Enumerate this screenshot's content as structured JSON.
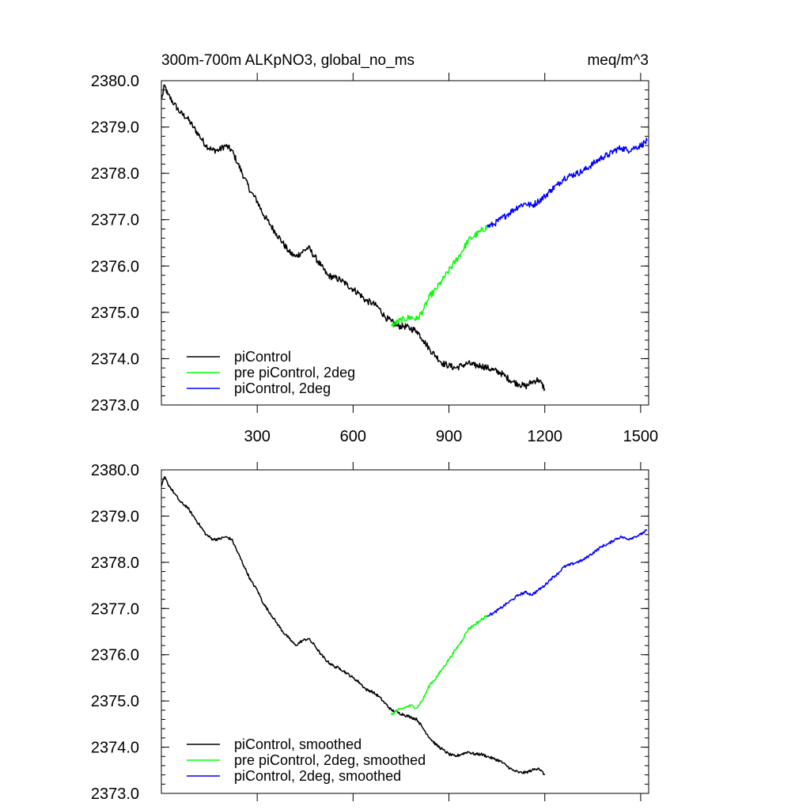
{
  "chart_data": [
    {
      "type": "line",
      "title": "300m-700m ALKpNO3, global_no_ms",
      "units": "meq/m^3",
      "xlabel": "",
      "ylabel": "",
      "xlim": [
        0,
        1525
      ],
      "ylim": [
        2373.0,
        2380.0
      ],
      "x_ticks": [
        "300",
        "600",
        "900",
        "1200",
        "1500"
      ],
      "y_ticks": [
        "2380.0",
        "2379.0",
        "2378.0",
        "2377.0",
        "2376.0",
        "2375.0",
        "2374.0",
        "2373.0"
      ],
      "legend_position": "bottom-left",
      "series": [
        {
          "name": "piControl",
          "color": "#000000",
          "x": [
            1,
            10,
            20,
            40,
            60,
            80,
            100,
            120,
            140,
            160,
            180,
            200,
            220,
            240,
            260,
            280,
            300,
            320,
            340,
            360,
            380,
            400,
            420,
            440,
            460,
            480,
            500,
            520,
            540,
            560,
            580,
            600,
            620,
            640,
            660,
            680,
            700,
            720,
            740,
            760,
            780,
            800,
            820,
            840,
            860,
            880,
            900,
            920,
            940,
            960,
            980,
            1000,
            1020,
            1040,
            1060,
            1080,
            1100,
            1120,
            1140,
            1160,
            1180,
            1200
          ],
          "y": [
            2379.6,
            2379.9,
            2379.7,
            2379.5,
            2379.3,
            2379.2,
            2379.0,
            2378.8,
            2378.6,
            2378.5,
            2378.5,
            2378.6,
            2378.5,
            2378.2,
            2377.9,
            2377.6,
            2377.4,
            2377.1,
            2376.9,
            2376.7,
            2376.5,
            2376.3,
            2376.2,
            2376.3,
            2376.4,
            2376.2,
            2376.0,
            2375.8,
            2375.75,
            2375.7,
            2375.6,
            2375.5,
            2375.4,
            2375.25,
            2375.2,
            2375.1,
            2374.9,
            2374.8,
            2374.7,
            2374.7,
            2374.65,
            2374.6,
            2374.4,
            2374.2,
            2374.05,
            2373.9,
            2373.85,
            2373.8,
            2373.85,
            2373.9,
            2373.85,
            2373.85,
            2373.8,
            2373.75,
            2373.7,
            2373.6,
            2373.5,
            2373.45,
            2373.4,
            2373.5,
            2373.55,
            2373.35
          ]
        },
        {
          "name": "pre piControl, 2deg",
          "color": "#00ff00",
          "x": [
            720,
            740,
            760,
            780,
            800,
            820,
            840,
            860,
            880,
            900,
            920,
            940,
            960,
            980,
            1000,
            1020
          ],
          "y": [
            2374.7,
            2374.8,
            2374.85,
            2374.9,
            2374.85,
            2375.05,
            2375.35,
            2375.5,
            2375.7,
            2375.9,
            2376.1,
            2376.3,
            2376.55,
            2376.65,
            2376.75,
            2376.85
          ]
        },
        {
          "name": "piControl, 2deg",
          "color": "#0000ff",
          "x": [
            1020,
            1040,
            1060,
            1080,
            1100,
            1120,
            1140,
            1160,
            1180,
            1200,
            1220,
            1240,
            1260,
            1280,
            1300,
            1320,
            1340,
            1360,
            1380,
            1400,
            1420,
            1440,
            1460,
            1480,
            1500,
            1520
          ],
          "y": [
            2376.85,
            2376.9,
            2377.0,
            2377.1,
            2377.2,
            2377.3,
            2377.35,
            2377.3,
            2377.4,
            2377.5,
            2377.65,
            2377.75,
            2377.9,
            2377.95,
            2378.0,
            2378.05,
            2378.15,
            2378.25,
            2378.35,
            2378.4,
            2378.5,
            2378.55,
            2378.5,
            2378.55,
            2378.6,
            2378.7
          ]
        }
      ]
    },
    {
      "type": "line",
      "title": "",
      "xlabel": "",
      "ylabel": "",
      "xlim": [
        0,
        1525
      ],
      "ylim": [
        2373.0,
        2380.0
      ],
      "y_ticks": [
        "2380.0",
        "2379.0",
        "2378.0",
        "2377.0",
        "2376.0",
        "2375.0",
        "2374.0",
        "2373.0"
      ],
      "legend_position": "bottom-left",
      "series": [
        {
          "name": "piControl, smoothed",
          "color": "#000000",
          "x": [
            1,
            10,
            20,
            40,
            60,
            80,
            100,
            120,
            140,
            160,
            180,
            200,
            220,
            240,
            260,
            280,
            300,
            320,
            340,
            360,
            380,
            400,
            420,
            440,
            460,
            480,
            500,
            520,
            540,
            560,
            580,
            600,
            620,
            640,
            660,
            680,
            700,
            720,
            740,
            760,
            780,
            800,
            820,
            840,
            860,
            880,
            900,
            920,
            940,
            960,
            980,
            1000,
            1020,
            1040,
            1060,
            1080,
            1100,
            1120,
            1140,
            1160,
            1180,
            1200
          ],
          "y": [
            2379.65,
            2379.85,
            2379.7,
            2379.5,
            2379.3,
            2379.2,
            2379.0,
            2378.8,
            2378.6,
            2378.5,
            2378.5,
            2378.55,
            2378.5,
            2378.2,
            2377.9,
            2377.6,
            2377.4,
            2377.1,
            2376.9,
            2376.7,
            2376.5,
            2376.35,
            2376.2,
            2376.3,
            2376.35,
            2376.2,
            2376.0,
            2375.85,
            2375.75,
            2375.7,
            2375.6,
            2375.5,
            2375.4,
            2375.25,
            2375.2,
            2375.1,
            2374.95,
            2374.8,
            2374.75,
            2374.7,
            2374.65,
            2374.6,
            2374.4,
            2374.2,
            2374.05,
            2373.95,
            2373.85,
            2373.8,
            2373.85,
            2373.9,
            2373.85,
            2373.85,
            2373.8,
            2373.75,
            2373.7,
            2373.6,
            2373.5,
            2373.45,
            2373.45,
            2373.5,
            2373.55,
            2373.4
          ]
        },
        {
          "name": "pre piControl, 2deg, smoothed",
          "color": "#00ff00",
          "x": [
            720,
            740,
            760,
            780,
            800,
            820,
            840,
            860,
            880,
            900,
            920,
            940,
            960,
            980,
            1000,
            1020
          ],
          "y": [
            2374.7,
            2374.8,
            2374.85,
            2374.9,
            2374.85,
            2375.05,
            2375.35,
            2375.5,
            2375.7,
            2375.9,
            2376.1,
            2376.3,
            2376.55,
            2376.65,
            2376.75,
            2376.85
          ]
        },
        {
          "name": "piControl, 2deg, smoothed",
          "color": "#0000ff",
          "x": [
            1020,
            1040,
            1060,
            1080,
            1100,
            1120,
            1140,
            1160,
            1180,
            1200,
            1220,
            1240,
            1260,
            1280,
            1300,
            1320,
            1340,
            1360,
            1380,
            1400,
            1420,
            1440,
            1460,
            1480,
            1500,
            1520
          ],
          "y": [
            2376.85,
            2376.9,
            2377.0,
            2377.1,
            2377.2,
            2377.3,
            2377.35,
            2377.3,
            2377.4,
            2377.5,
            2377.65,
            2377.75,
            2377.9,
            2377.95,
            2378.0,
            2378.05,
            2378.15,
            2378.25,
            2378.35,
            2378.4,
            2378.5,
            2378.55,
            2378.5,
            2378.55,
            2378.6,
            2378.7
          ]
        }
      ]
    }
  ]
}
